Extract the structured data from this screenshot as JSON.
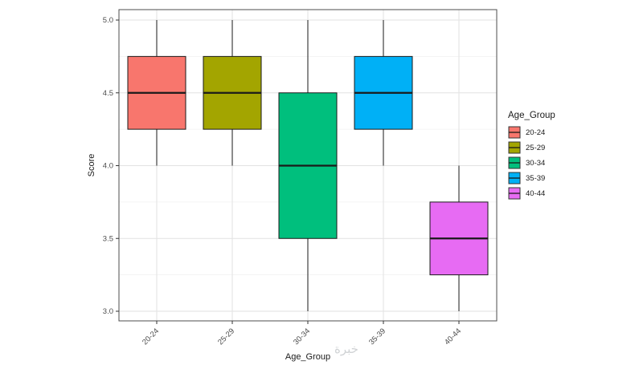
{
  "chart_data": {
    "type": "boxplot",
    "title": "",
    "xlabel": "Age_Group",
    "ylabel": "Score",
    "ylim": [
      3.0,
      5.0
    ],
    "yticks": [
      3.0,
      3.5,
      4.0,
      4.5,
      5.0
    ],
    "ytick_labels": [
      "3.0",
      "3.5",
      "4.0",
      "4.5",
      "5.0"
    ],
    "categories": [
      "20-24",
      "25-29",
      "30-34",
      "35-39",
      "40-44"
    ],
    "series": [
      {
        "name": "20-24",
        "color": "#F8766D",
        "whisker_low": 4.0,
        "q1": 4.25,
        "median": 4.5,
        "q3": 4.75,
        "whisker_high": 5.0
      },
      {
        "name": "25-29",
        "color": "#A3A500",
        "whisker_low": 4.0,
        "q1": 4.25,
        "median": 4.5,
        "q3": 4.75,
        "whisker_high": 5.0
      },
      {
        "name": "30-34",
        "color": "#00BF7D",
        "whisker_low": 3.0,
        "q1": 3.5,
        "median": 4.0,
        "q3": 4.5,
        "whisker_high": 5.0
      },
      {
        "name": "35-39",
        "color": "#00B0F6",
        "whisker_low": 4.0,
        "q1": 4.25,
        "median": 4.5,
        "q3": 4.75,
        "whisker_high": 5.0
      },
      {
        "name": "40-44",
        "color": "#E76BF3",
        "whisker_low": 3.0,
        "q1": 3.25,
        "median": 3.5,
        "q3": 3.75,
        "whisker_high": 4.0
      }
    ],
    "legend": {
      "title": "Age_Group",
      "position": "right",
      "entries": [
        "20-24",
        "25-29",
        "30-34",
        "35-39",
        "40-44"
      ]
    },
    "grid": "on",
    "style": {
      "box_border": "#1A1A1A",
      "grid_major": "#E2E2E2",
      "grid_minor": "#F1F1F1",
      "panel_border": "#4D4D4D",
      "axis_tick": "#333333"
    }
  },
  "watermark": {
    "text": "خبرة"
  }
}
